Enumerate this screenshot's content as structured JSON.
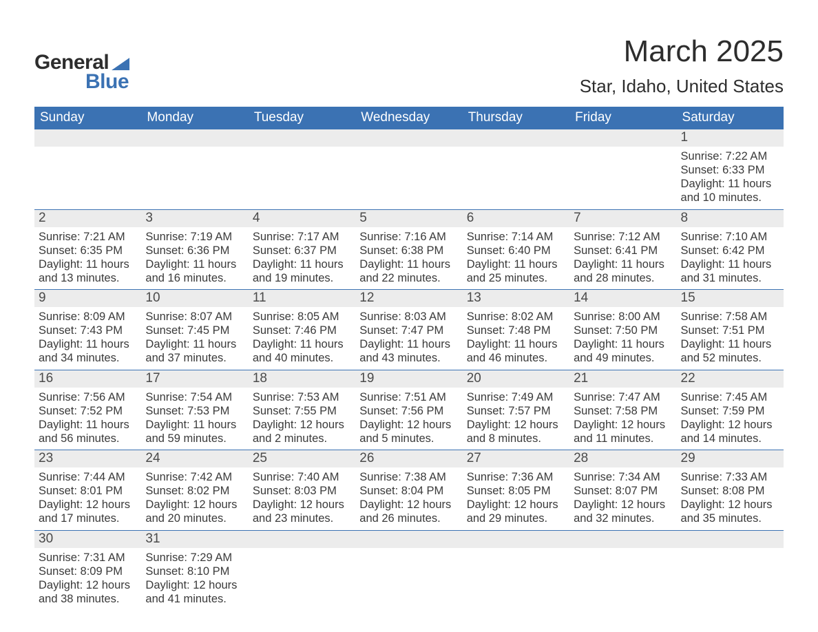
{
  "brand": {
    "word1": "General",
    "word2": "Blue",
    "accent_color": "#3b72b3"
  },
  "title": "March 2025",
  "location": "Star, Idaho, United States",
  "colors": {
    "header_bg": "#3b72b3",
    "header_text": "#ffffff",
    "daynum_bg": "#ececec",
    "row_border": "#3b72b3",
    "body_text": "#3a3a3a",
    "page_bg": "#ffffff"
  },
  "typography": {
    "title_fontsize": 44,
    "location_fontsize": 26,
    "header_fontsize": 19,
    "daynum_fontsize": 19,
    "body_fontsize": 16.5
  },
  "day_headers": [
    "Sunday",
    "Monday",
    "Tuesday",
    "Wednesday",
    "Thursday",
    "Friday",
    "Saturday"
  ],
  "weeks": [
    [
      null,
      null,
      null,
      null,
      null,
      null,
      {
        "n": "1",
        "sunrise": "7:22 AM",
        "sunset": "6:33 PM",
        "dl1": "11 hours",
        "dl2": "and 10 minutes."
      }
    ],
    [
      {
        "n": "2",
        "sunrise": "7:21 AM",
        "sunset": "6:35 PM",
        "dl1": "11 hours",
        "dl2": "and 13 minutes."
      },
      {
        "n": "3",
        "sunrise": "7:19 AM",
        "sunset": "6:36 PM",
        "dl1": "11 hours",
        "dl2": "and 16 minutes."
      },
      {
        "n": "4",
        "sunrise": "7:17 AM",
        "sunset": "6:37 PM",
        "dl1": "11 hours",
        "dl2": "and 19 minutes."
      },
      {
        "n": "5",
        "sunrise": "7:16 AM",
        "sunset": "6:38 PM",
        "dl1": "11 hours",
        "dl2": "and 22 minutes."
      },
      {
        "n": "6",
        "sunrise": "7:14 AM",
        "sunset": "6:40 PM",
        "dl1": "11 hours",
        "dl2": "and 25 minutes."
      },
      {
        "n": "7",
        "sunrise": "7:12 AM",
        "sunset": "6:41 PM",
        "dl1": "11 hours",
        "dl2": "and 28 minutes."
      },
      {
        "n": "8",
        "sunrise": "7:10 AM",
        "sunset": "6:42 PM",
        "dl1": "11 hours",
        "dl2": "and 31 minutes."
      }
    ],
    [
      {
        "n": "9",
        "sunrise": "8:09 AM",
        "sunset": "7:43 PM",
        "dl1": "11 hours",
        "dl2": "and 34 minutes."
      },
      {
        "n": "10",
        "sunrise": "8:07 AM",
        "sunset": "7:45 PM",
        "dl1": "11 hours",
        "dl2": "and 37 minutes."
      },
      {
        "n": "11",
        "sunrise": "8:05 AM",
        "sunset": "7:46 PM",
        "dl1": "11 hours",
        "dl2": "and 40 minutes."
      },
      {
        "n": "12",
        "sunrise": "8:03 AM",
        "sunset": "7:47 PM",
        "dl1": "11 hours",
        "dl2": "and 43 minutes."
      },
      {
        "n": "13",
        "sunrise": "8:02 AM",
        "sunset": "7:48 PM",
        "dl1": "11 hours",
        "dl2": "and 46 minutes."
      },
      {
        "n": "14",
        "sunrise": "8:00 AM",
        "sunset": "7:50 PM",
        "dl1": "11 hours",
        "dl2": "and 49 minutes."
      },
      {
        "n": "15",
        "sunrise": "7:58 AM",
        "sunset": "7:51 PM",
        "dl1": "11 hours",
        "dl2": "and 52 minutes."
      }
    ],
    [
      {
        "n": "16",
        "sunrise": "7:56 AM",
        "sunset": "7:52 PM",
        "dl1": "11 hours",
        "dl2": "and 56 minutes."
      },
      {
        "n": "17",
        "sunrise": "7:54 AM",
        "sunset": "7:53 PM",
        "dl1": "11 hours",
        "dl2": "and 59 minutes."
      },
      {
        "n": "18",
        "sunrise": "7:53 AM",
        "sunset": "7:55 PM",
        "dl1": "12 hours",
        "dl2": "and 2 minutes."
      },
      {
        "n": "19",
        "sunrise": "7:51 AM",
        "sunset": "7:56 PM",
        "dl1": "12 hours",
        "dl2": "and 5 minutes."
      },
      {
        "n": "20",
        "sunrise": "7:49 AM",
        "sunset": "7:57 PM",
        "dl1": "12 hours",
        "dl2": "and 8 minutes."
      },
      {
        "n": "21",
        "sunrise": "7:47 AM",
        "sunset": "7:58 PM",
        "dl1": "12 hours",
        "dl2": "and 11 minutes."
      },
      {
        "n": "22",
        "sunrise": "7:45 AM",
        "sunset": "7:59 PM",
        "dl1": "12 hours",
        "dl2": "and 14 minutes."
      }
    ],
    [
      {
        "n": "23",
        "sunrise": "7:44 AM",
        "sunset": "8:01 PM",
        "dl1": "12 hours",
        "dl2": "and 17 minutes."
      },
      {
        "n": "24",
        "sunrise": "7:42 AM",
        "sunset": "8:02 PM",
        "dl1": "12 hours",
        "dl2": "and 20 minutes."
      },
      {
        "n": "25",
        "sunrise": "7:40 AM",
        "sunset": "8:03 PM",
        "dl1": "12 hours",
        "dl2": "and 23 minutes."
      },
      {
        "n": "26",
        "sunrise": "7:38 AM",
        "sunset": "8:04 PM",
        "dl1": "12 hours",
        "dl2": "and 26 minutes."
      },
      {
        "n": "27",
        "sunrise": "7:36 AM",
        "sunset": "8:05 PM",
        "dl1": "12 hours",
        "dl2": "and 29 minutes."
      },
      {
        "n": "28",
        "sunrise": "7:34 AM",
        "sunset": "8:07 PM",
        "dl1": "12 hours",
        "dl2": "and 32 minutes."
      },
      {
        "n": "29",
        "sunrise": "7:33 AM",
        "sunset": "8:08 PM",
        "dl1": "12 hours",
        "dl2": "and 35 minutes."
      }
    ],
    [
      {
        "n": "30",
        "sunrise": "7:31 AM",
        "sunset": "8:09 PM",
        "dl1": "12 hours",
        "dl2": "and 38 minutes."
      },
      {
        "n": "31",
        "sunrise": "7:29 AM",
        "sunset": "8:10 PM",
        "dl1": "12 hours",
        "dl2": "and 41 minutes."
      },
      null,
      null,
      null,
      null,
      null
    ]
  ],
  "labels": {
    "sunrise": "Sunrise: ",
    "sunset": "Sunset: ",
    "daylight": "Daylight: "
  }
}
